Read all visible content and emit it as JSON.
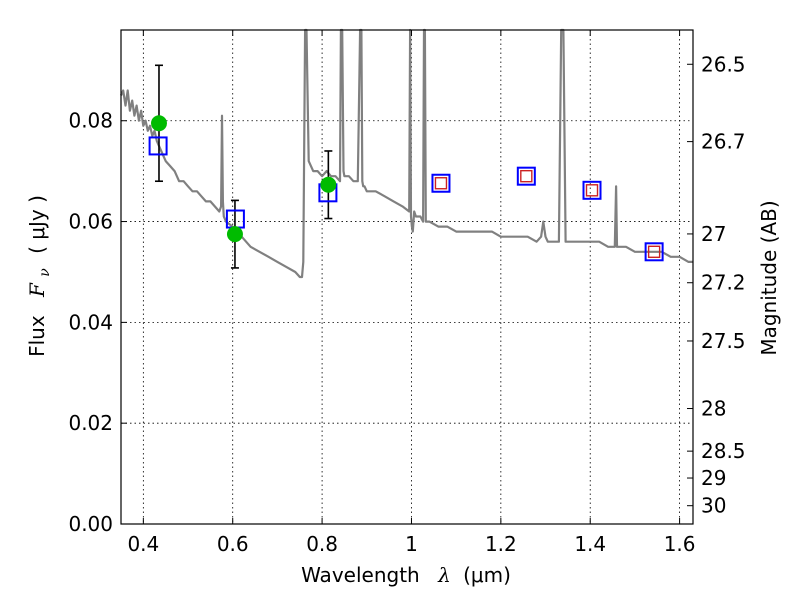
{
  "chart_data": {
    "type": "scatter",
    "xlabel_text": "Wavelength",
    "xlabel_symbol": "λ",
    "xlabel_unit": "(μm)",
    "ylabel_text": "Flux",
    "ylabel_symbol": "F",
    "ylabel_sub": "ν",
    "ylabel_unit": "( μJy )",
    "y2label": "Magnitude (AB)",
    "xlim": [
      0.35,
      1.63
    ],
    "ylim": [
      0.0,
      0.098
    ],
    "grid": true,
    "x_ticks": [
      0.4,
      0.6,
      0.8,
      1.0,
      1.2,
      1.4,
      1.6
    ],
    "x_tick_labels": [
      "0.4",
      "0.6",
      "0.8",
      "1",
      "1.2",
      "1.4",
      "1.6"
    ],
    "y_ticks": [
      0.0,
      0.02,
      0.04,
      0.06,
      0.08
    ],
    "y_tick_labels": [
      "0.00",
      "0.02",
      "0.04",
      "0.06",
      "0.08"
    ],
    "mag_ticks": [
      26.5,
      26.7,
      27.0,
      27.2,
      27.5,
      28.0,
      28.5,
      29.0,
      30.0
    ],
    "mag_tick_labels": [
      "26.5",
      "26.7",
      "27",
      "27.2",
      "27.5",
      "28",
      "28.5",
      "29",
      "30"
    ],
    "observed": {
      "x": [
        0.435,
        0.605,
        0.814
      ],
      "y": [
        0.0795,
        0.0575,
        0.0673
      ],
      "yerr": [
        0.0115,
        0.0067,
        0.0067
      ],
      "color": "#00bb00"
    },
    "model_blue_squares": {
      "x": [
        0.433,
        0.606,
        0.813,
        1.066,
        1.257,
        1.404,
        1.543
      ],
      "y": [
        0.075,
        0.0605,
        0.0657,
        0.0676,
        0.069,
        0.0662,
        0.054
      ],
      "color": "#0000ff"
    },
    "model_red_squares": {
      "x": [
        1.066,
        1.257,
        1.404,
        1.543
      ],
      "y": [
        0.0676,
        0.069,
        0.0662,
        0.054
      ],
      "color": "#cc2222"
    },
    "sed_line": {
      "color": "#808080",
      "x": [
        0.35,
        0.355,
        0.36,
        0.365,
        0.37,
        0.375,
        0.38,
        0.385,
        0.39,
        0.395,
        0.4,
        0.405,
        0.41,
        0.415,
        0.42,
        0.425,
        0.43,
        0.44,
        0.45,
        0.46,
        0.47,
        0.48,
        0.49,
        0.5,
        0.51,
        0.52,
        0.53,
        0.54,
        0.55,
        0.56,
        0.57,
        0.574,
        0.576,
        0.578,
        0.58,
        0.585,
        0.6,
        0.62,
        0.64,
        0.66,
        0.68,
        0.7,
        0.72,
        0.74,
        0.75,
        0.755,
        0.758,
        0.76,
        0.762,
        0.765,
        0.77,
        0.78,
        0.79,
        0.8,
        0.81,
        0.82,
        0.83,
        0.84,
        0.842,
        0.845,
        0.848,
        0.85,
        0.86,
        0.87,
        0.88,
        0.885,
        0.888,
        0.89,
        0.892,
        0.895,
        0.9,
        0.92,
        0.94,
        0.96,
        0.98,
        0.995,
        0.997,
        0.999,
        1.001,
        1.003,
        1.006,
        1.01,
        1.02,
        1.026,
        1.028,
        1.03,
        1.032,
        1.035,
        1.04,
        1.06,
        1.08,
        1.1,
        1.12,
        1.14,
        1.16,
        1.18,
        1.2,
        1.22,
        1.24,
        1.26,
        1.28,
        1.29,
        1.295,
        1.3,
        1.305,
        1.31,
        1.32,
        1.33,
        1.335,
        1.34,
        1.345,
        1.35,
        1.36,
        1.38,
        1.4,
        1.42,
        1.44,
        1.45,
        1.455,
        1.458,
        1.46,
        1.462,
        1.465,
        1.47,
        1.48,
        1.5,
        1.52,
        1.54,
        1.56,
        1.58,
        1.6,
        1.62,
        1.63
      ],
      "y": [
        0.085,
        0.086,
        0.083,
        0.086,
        0.082,
        0.084,
        0.081,
        0.083,
        0.08,
        0.082,
        0.079,
        0.08,
        0.078,
        0.079,
        0.077,
        0.078,
        0.076,
        0.074,
        0.072,
        0.071,
        0.07,
        0.068,
        0.068,
        0.067,
        0.066,
        0.066,
        0.065,
        0.064,
        0.064,
        0.063,
        0.062,
        0.063,
        0.081,
        0.064,
        0.061,
        0.06,
        0.059,
        0.057,
        0.055,
        0.054,
        0.053,
        0.052,
        0.051,
        0.05,
        0.049,
        0.049,
        0.052,
        0.075,
        0.098,
        0.098,
        0.072,
        0.07,
        0.07,
        0.069,
        0.07,
        0.069,
        0.069,
        0.068,
        0.098,
        0.098,
        0.07,
        0.069,
        0.069,
        0.068,
        0.068,
        0.098,
        0.098,
        0.068,
        0.067,
        0.067,
        0.066,
        0.066,
        0.065,
        0.064,
        0.063,
        0.062,
        0.098,
        0.061,
        0.059,
        0.058,
        0.062,
        0.061,
        0.061,
        0.06,
        0.098,
        0.098,
        0.06,
        0.06,
        0.06,
        0.059,
        0.059,
        0.058,
        0.058,
        0.058,
        0.058,
        0.058,
        0.057,
        0.057,
        0.057,
        0.057,
        0.056,
        0.057,
        0.06,
        0.057,
        0.056,
        0.056,
        0.056,
        0.056,
        0.098,
        0.098,
        0.056,
        0.056,
        0.056,
        0.056,
        0.056,
        0.056,
        0.055,
        0.055,
        0.055,
        0.067,
        0.055,
        0.055,
        0.055,
        0.055,
        0.055,
        0.054,
        0.054,
        0.054,
        0.054,
        0.053,
        0.053,
        0.052,
        0.052
      ]
    }
  }
}
